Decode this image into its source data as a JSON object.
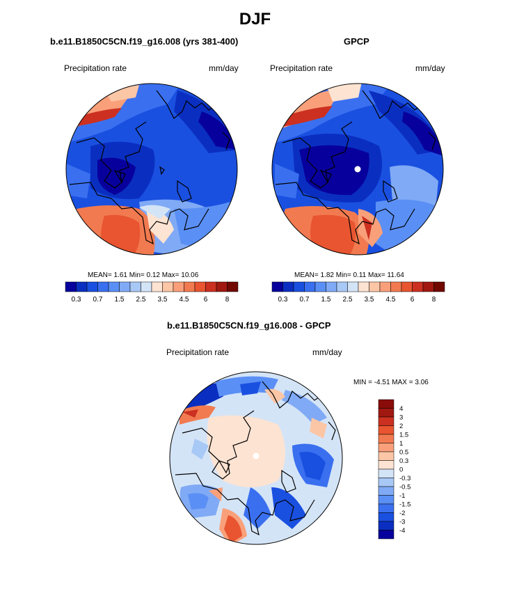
{
  "main_title": "DJF",
  "colors": {
    "abs_scale": [
      "#08009c",
      "#0a2fc0",
      "#1a50e0",
      "#3a70f0",
      "#5a8ff5",
      "#80aaf5",
      "#a8c8f5",
      "#d4e4f7",
      "#fde3d2",
      "#fbc6a6",
      "#f9a07a",
      "#f27a50",
      "#e85530",
      "#cc3020",
      "#a01810",
      "#700800"
    ],
    "diff_scale": [
      "#08009c",
      "#0a2fc0",
      "#1a50e0",
      "#3a70f0",
      "#5a8ff5",
      "#80aaf5",
      "#a8c8f5",
      "#d4e4f7",
      "#fde3d2",
      "#fbc6a6",
      "#f9a07a",
      "#f27a50",
      "#e85530",
      "#cc3020",
      "#a01810",
      "#8a0c08"
    ]
  },
  "chart_data": [
    {
      "type": "heatmap",
      "projection": "north-polar-stereographic",
      "title": "b.e11.B1850C5CN.f19_g16.008 (yrs 381-400)",
      "left_label": "Precipitation rate",
      "right_label": "mm/day",
      "stats": {
        "mean_label": "MEAN=",
        "mean": "1.61",
        "min_label": "Min=",
        "min": "0.12",
        "max_label": "Max=",
        "max": "10.06"
      },
      "colorbar": {
        "orientation": "horizontal",
        "tick_labels": [
          "0.3",
          "0.7",
          "1.5",
          "2.5",
          "3.5",
          "4.5",
          "6",
          "8"
        ]
      }
    },
    {
      "type": "heatmap",
      "projection": "north-polar-stereographic",
      "title": "GPCP",
      "left_label": "Precipitation rate",
      "right_label": "mm/day",
      "stats": {
        "mean_label": "MEAN=",
        "mean": "1.82",
        "min_label": "Min=",
        "min": "0.11",
        "max_label": "Max=",
        "max": "11.64"
      },
      "colorbar": {
        "orientation": "horizontal",
        "tick_labels": [
          "0.3",
          "0.7",
          "1.5",
          "2.5",
          "3.5",
          "4.5",
          "6",
          "8"
        ]
      }
    },
    {
      "type": "heatmap",
      "projection": "north-polar-stereographic",
      "title": "b.e11.B1850C5CN.f19_g16.008 - GPCP",
      "left_label": "Precipitation rate",
      "right_label": "mm/day",
      "stats_text": "MIN =  -4.51 MAX =   3.06",
      "colorbar": {
        "orientation": "vertical",
        "tick_labels": [
          "4",
          "3",
          "2",
          "1.5",
          "1",
          "0.5",
          "0.3",
          "0",
          "-0.3",
          "-0.5",
          "-1",
          "-1.5",
          "-2",
          "-3",
          "-4"
        ]
      }
    }
  ]
}
